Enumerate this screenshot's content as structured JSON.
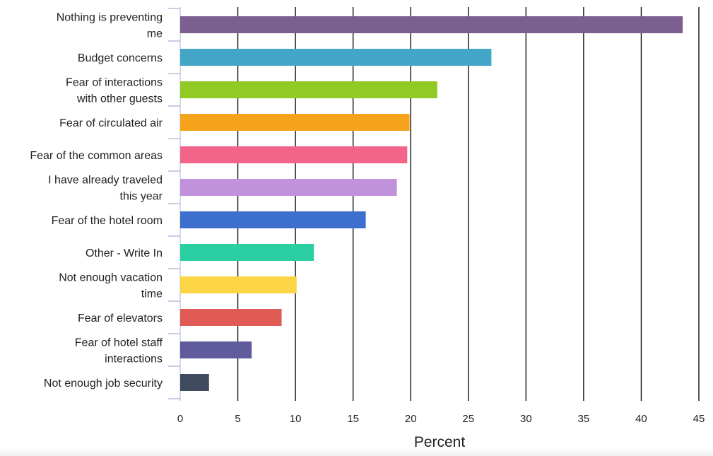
{
  "chart_data": {
    "type": "bar",
    "orientation": "horizontal",
    "categories": [
      [
        "Nothing is preventing",
        "me"
      ],
      [
        "Budget concerns"
      ],
      [
        "Fear of interactions",
        "with other guests"
      ],
      [
        "Fear of circulated air"
      ],
      [
        "Fear of the common areas"
      ],
      [
        "I have already traveled",
        "this year"
      ],
      [
        "Fear of the hotel room"
      ],
      [
        "Other - Write In"
      ],
      [
        "Not enough vacation",
        "time"
      ],
      [
        "Fear of elevators"
      ],
      [
        "Fear of hotel staff",
        "interactions"
      ],
      [
        "Not enough job security"
      ]
    ],
    "values": [
      43.6,
      27.0,
      22.3,
      19.9,
      19.7,
      18.8,
      16.1,
      11.6,
      10.1,
      8.8,
      6.2,
      2.5
    ],
    "colors": [
      "#7b5f8f",
      "#44a6c6",
      "#91c925",
      "#f5a31b",
      "#f26589",
      "#c092dc",
      "#3d6fcf",
      "#2bcfa2",
      "#fbd546",
      "#e05b53",
      "#5f5b9d",
      "#404a5e"
    ],
    "xlabel": "Percent",
    "ylabel": "",
    "title": "",
    "xlim": [
      0,
      45
    ],
    "xticks": [
      0,
      5,
      10,
      15,
      20,
      25,
      30,
      35,
      40,
      45
    ],
    "grid": "vertical"
  }
}
